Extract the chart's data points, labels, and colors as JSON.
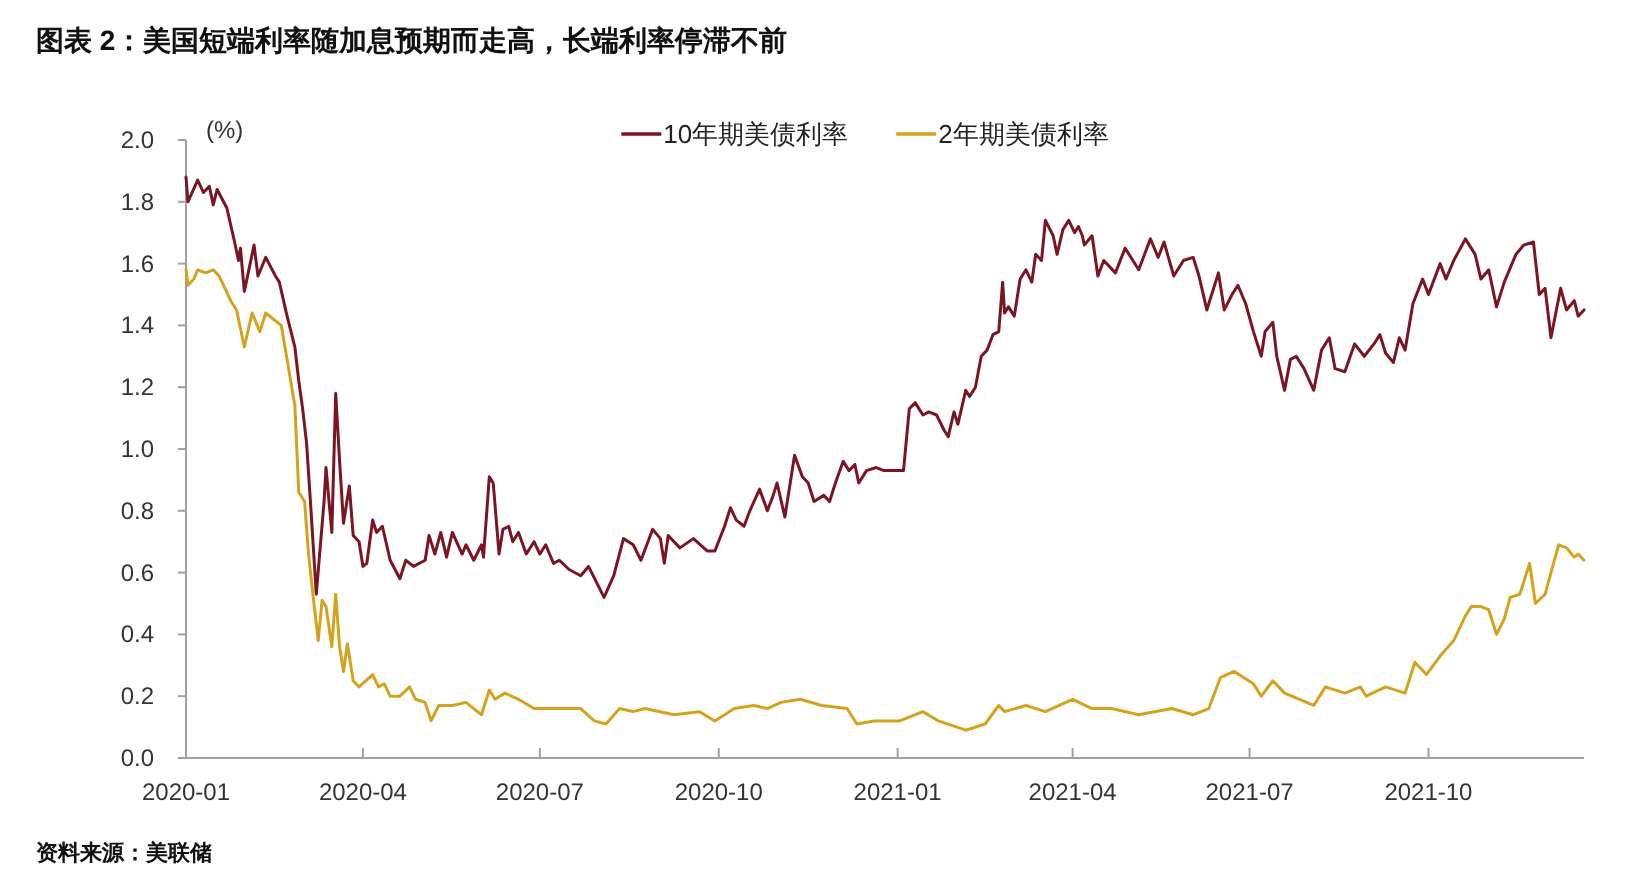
{
  "chart_data": {
    "type": "line",
    "title": "图表 2：美国短端利率随加息预期而走高，长端利率停滞不前",
    "ylabel": "(%)",
    "annotations": [
      "资料来源：美联储"
    ],
    "legend": "top",
    "xlim": [
      "2020-01-01",
      "2021-12-20"
    ],
    "xticks": [
      "2020-01",
      "2020-04",
      "2020-07",
      "2020-10",
      "2021-01",
      "2021-04",
      "2021-07",
      "2021-10"
    ],
    "ylim": [
      0,
      2
    ],
    "yticks": [
      {
        "value": 0,
        "label": "0.0"
      },
      0.2,
      0.4,
      0.6,
      0.8,
      {
        "value": 1,
        "label": "1.0"
      },
      1.2,
      1.4,
      1.6,
      1.8,
      {
        "value": 2,
        "label": "2.0"
      }
    ],
    "series": [
      {
        "name": "10年期美债利率",
        "color": "#7b1423",
        "x": [
          "2020-01-01",
          "2020-01-02",
          "2020-01-07",
          "2020-01-10",
          "2020-01-13",
          "2020-01-15",
          "2020-01-17",
          "2020-01-22",
          "2020-01-26",
          "2020-01-28",
          "2020-01-29",
          "2020-01-31",
          "2020-02-05",
          "2020-02-07",
          "2020-02-11",
          "2020-02-16",
          "2020-02-18",
          "2020-02-22",
          "2020-02-26",
          "2020-02-28",
          "2020-03-01",
          "2020-03-03",
          "2020-03-05",
          "2020-03-08",
          "2020-03-12",
          "2020-03-13",
          "2020-03-16",
          "2020-03-18",
          "2020-03-20",
          "2020-03-22",
          "2020-03-25",
          "2020-03-27",
          "2020-03-30",
          "2020-04-01",
          "2020-04-03",
          "2020-04-06",
          "2020-04-08",
          "2020-04-11",
          "2020-04-15",
          "2020-04-20",
          "2020-04-23",
          "2020-04-27",
          "2020-05-03",
          "2020-05-05",
          "2020-05-08",
          "2020-05-11",
          "2020-05-14",
          "2020-05-17",
          "2020-05-22",
          "2020-05-24",
          "2020-05-28",
          "2020-06-01",
          "2020-06-02",
          "2020-06-05",
          "2020-06-07",
          "2020-06-10",
          "2020-06-12",
          "2020-06-15",
          "2020-06-17",
          "2020-06-20",
          "2020-06-24",
          "2020-06-28",
          "2020-07-01",
          "2020-07-04",
          "2020-07-08",
          "2020-07-11",
          "2020-07-16",
          "2020-07-22",
          "2020-07-26",
          "2020-07-30",
          "2020-08-03",
          "2020-08-08",
          "2020-08-13",
          "2020-08-18",
          "2020-08-22",
          "2020-08-28",
          "2020-09-01",
          "2020-09-03",
          "2020-09-05",
          "2020-09-11",
          "2020-09-18",
          "2020-09-25",
          "2020-09-29",
          "2020-10-04",
          "2020-10-07",
          "2020-10-10",
          "2020-10-14",
          "2020-10-17",
          "2020-10-22",
          "2020-10-26",
          "2020-10-29",
          "2020-10-31",
          "2020-11-04",
          "2020-11-06",
          "2020-11-09",
          "2020-11-13",
          "2020-11-16",
          "2020-11-19",
          "2020-11-24",
          "2020-11-27",
          "2020-11-30",
          "2020-12-04",
          "2020-12-07",
          "2020-12-10",
          "2020-12-12",
          "2020-12-16",
          "2020-12-21",
          "2020-12-25",
          "2020-12-30",
          "2021-01-04",
          "2021-01-07",
          "2021-01-10",
          "2021-01-14",
          "2021-01-17",
          "2021-01-21",
          "2021-01-25",
          "2021-01-27",
          "2021-01-30",
          "2021-02-01",
          "2021-02-05",
          "2021-02-07",
          "2021-02-10",
          "2021-02-13",
          "2021-02-16",
          "2021-02-19",
          "2021-02-22",
          "2021-02-24",
          "2021-02-25",
          "2021-02-27",
          "2021-03-02",
          "2021-03-05",
          "2021-03-08",
          "2021-03-11",
          "2021-03-13",
          "2021-03-16",
          "2021-03-18",
          "2021-03-22",
          "2021-03-24",
          "2021-03-27",
          "2021-03-30",
          "2021-04-02",
          "2021-04-04",
          "2021-04-06",
          "2021-04-07",
          "2021-04-11",
          "2021-04-14",
          "2021-04-17",
          "2021-04-23",
          "2021-04-28",
          "2021-05-05",
          "2021-05-11",
          "2021-05-15",
          "2021-05-18",
          "2021-05-23",
          "2021-05-28",
          "2021-06-02",
          "2021-06-05",
          "2021-06-09",
          "2021-06-15",
          "2021-06-18",
          "2021-06-22",
          "2021-06-25",
          "2021-06-29",
          "2021-07-03",
          "2021-07-07",
          "2021-07-09",
          "2021-07-13",
          "2021-07-15",
          "2021-07-19",
          "2021-07-22",
          "2021-07-25",
          "2021-07-29",
          "2021-08-03",
          "2021-08-07",
          "2021-08-11",
          "2021-08-14",
          "2021-08-19",
          "2021-08-24",
          "2021-08-29",
          "2021-09-03",
          "2021-09-06",
          "2021-09-09",
          "2021-09-13",
          "2021-09-16",
          "2021-09-19",
          "2021-09-23",
          "2021-09-28",
          "2021-10-01",
          "2021-10-07",
          "2021-10-10",
          "2021-10-14",
          "2021-10-20",
          "2021-10-25",
          "2021-10-28",
          "2021-11-01",
          "2021-11-05",
          "2021-11-09",
          "2021-11-15",
          "2021-11-19",
          "2021-11-24",
          "2021-11-27",
          "2021-11-30",
          "2021-12-03",
          "2021-12-08",
          "2021-12-11",
          "2021-12-15",
          "2021-12-17",
          "2021-12-20"
        ],
        "values": [
          1.88,
          1.8,
          1.87,
          1.83,
          1.85,
          1.79,
          1.84,
          1.78,
          1.67,
          1.61,
          1.65,
          1.51,
          1.66,
          1.56,
          1.62,
          1.56,
          1.54,
          1.43,
          1.33,
          1.22,
          1.13,
          1.02,
          0.83,
          0.53,
          0.83,
          0.94,
          0.73,
          1.18,
          0.96,
          0.76,
          0.88,
          0.72,
          0.7,
          0.62,
          0.63,
          0.77,
          0.73,
          0.75,
          0.64,
          0.58,
          0.64,
          0.62,
          0.64,
          0.72,
          0.66,
          0.73,
          0.65,
          0.73,
          0.66,
          0.69,
          0.64,
          0.69,
          0.65,
          0.91,
          0.89,
          0.66,
          0.74,
          0.75,
          0.7,
          0.73,
          0.66,
          0.7,
          0.66,
          0.69,
          0.63,
          0.64,
          0.61,
          0.59,
          0.62,
          0.57,
          0.52,
          0.59,
          0.71,
          0.69,
          0.64,
          0.74,
          0.71,
          0.63,
          0.72,
          0.68,
          0.71,
          0.67,
          0.67,
          0.75,
          0.81,
          0.77,
          0.75,
          0.8,
          0.87,
          0.8,
          0.85,
          0.89,
          0.78,
          0.86,
          0.98,
          0.91,
          0.89,
          0.83,
          0.85,
          0.83,
          0.89,
          0.96,
          0.93,
          0.95,
          0.89,
          0.93,
          0.94,
          0.93,
          0.93,
          0.93,
          1.13,
          1.15,
          1.11,
          1.12,
          1.11,
          1.06,
          1.04,
          1.12,
          1.08,
          1.19,
          1.17,
          1.2,
          1.3,
          1.32,
          1.37,
          1.38,
          1.54,
          1.44,
          1.46,
          1.43,
          1.55,
          1.58,
          1.54,
          1.63,
          1.61,
          1.74,
          1.69,
          1.63,
          1.71,
          1.74,
          1.7,
          1.72,
          1.69,
          1.66,
          1.69,
          1.56,
          1.61,
          1.57,
          1.65,
          1.58,
          1.68,
          1.62,
          1.67,
          1.56,
          1.61,
          1.62,
          1.56,
          1.45,
          1.57,
          1.45,
          1.5,
          1.53,
          1.47,
          1.38,
          1.3,
          1.38,
          1.41,
          1.3,
          1.19,
          1.29,
          1.3,
          1.26,
          1.19,
          1.32,
          1.36,
          1.26,
          1.25,
          1.34,
          1.3,
          1.34,
          1.37,
          1.31,
          1.28,
          1.36,
          1.32,
          1.47,
          1.55,
          1.5,
          1.6,
          1.55,
          1.61,
          1.68,
          1.63,
          1.55,
          1.58,
          1.46,
          1.54,
          1.63,
          1.66,
          1.67,
          1.5,
          1.52,
          1.36,
          1.52,
          1.45,
          1.48,
          1.43,
          1.45
        ]
      },
      {
        "name": "2年期美债利率",
        "color": "#d4a21c",
        "x": [
          "2020-01-01",
          "2020-01-02",
          "2020-01-05",
          "2020-01-07",
          "2020-01-11",
          "2020-01-15",
          "2020-01-18",
          "2020-01-24",
          "2020-01-27",
          "2020-01-31",
          "2020-02-04",
          "2020-02-08",
          "2020-02-11",
          "2020-02-15",
          "2020-02-19",
          "2020-02-22",
          "2020-02-26",
          "2020-02-28",
          "2020-03-02",
          "2020-03-04",
          "2020-03-07",
          "2020-03-09",
          "2020-03-11",
          "2020-03-13",
          "2020-03-16",
          "2020-03-18",
          "2020-03-20",
          "2020-03-22",
          "2020-03-24",
          "2020-03-27",
          "2020-03-30",
          "2020-04-06",
          "2020-04-09",
          "2020-04-12",
          "2020-04-15",
          "2020-04-20",
          "2020-04-25",
          "2020-04-28",
          "2020-05-03",
          "2020-05-06",
          "2020-05-10",
          "2020-05-17",
          "2020-05-24",
          "2020-06-01",
          "2020-06-05",
          "2020-06-08",
          "2020-06-13",
          "2020-06-20",
          "2020-06-28",
          "2020-07-08",
          "2020-07-22",
          "2020-07-29",
          "2020-08-04",
          "2020-08-11",
          "2020-08-18",
          "2020-08-24",
          "2020-09-08",
          "2020-09-21",
          "2020-09-29",
          "2020-10-09",
          "2020-10-19",
          "2020-10-26",
          "2020-11-02",
          "2020-11-12",
          "2020-11-23",
          "2020-12-06",
          "2020-12-11",
          "2020-12-20",
          "2021-01-02",
          "2021-01-14",
          "2021-01-22",
          "2021-02-05",
          "2021-02-15",
          "2021-02-22",
          "2021-02-25",
          "2021-03-08",
          "2021-03-18",
          "2021-04-01",
          "2021-04-11",
          "2021-04-21",
          "2021-05-05",
          "2021-05-22",
          "2021-06-02",
          "2021-06-10",
          "2021-06-16",
          "2021-06-23",
          "2021-07-03",
          "2021-07-07",
          "2021-07-13",
          "2021-07-19",
          "2021-08-03",
          "2021-08-09",
          "2021-08-19",
          "2021-08-27",
          "2021-08-30",
          "2021-09-09",
          "2021-09-19",
          "2021-09-24",
          "2021-09-30",
          "2021-10-07",
          "2021-10-14",
          "2021-10-20",
          "2021-10-23",
          "2021-10-28",
          "2021-11-01",
          "2021-11-05",
          "2021-11-09",
          "2021-11-12",
          "2021-11-17",
          "2021-11-22",
          "2021-11-25",
          "2021-11-30",
          "2021-12-03",
          "2021-12-07",
          "2021-12-11",
          "2021-12-15",
          "2021-12-17",
          "2021-12-20"
        ],
        "values": [
          1.58,
          1.53,
          1.55,
          1.58,
          1.57,
          1.58,
          1.56,
          1.48,
          1.45,
          1.33,
          1.44,
          1.38,
          1.44,
          1.42,
          1.4,
          1.29,
          1.14,
          0.86,
          0.83,
          0.66,
          0.49,
          0.38,
          0.51,
          0.49,
          0.36,
          0.53,
          0.36,
          0.28,
          0.37,
          0.25,
          0.23,
          0.27,
          0.23,
          0.24,
          0.2,
          0.2,
          0.23,
          0.19,
          0.18,
          0.12,
          0.17,
          0.17,
          0.18,
          0.14,
          0.22,
          0.19,
          0.21,
          0.19,
          0.16,
          0.16,
          0.16,
          0.12,
          0.11,
          0.16,
          0.15,
          0.16,
          0.14,
          0.15,
          0.12,
          0.16,
          0.17,
          0.16,
          0.18,
          0.19,
          0.17,
          0.16,
          0.11,
          0.12,
          0.12,
          0.15,
          0.12,
          0.09,
          0.11,
          0.17,
          0.15,
          0.17,
          0.15,
          0.19,
          0.16,
          0.16,
          0.14,
          0.16,
          0.14,
          0.16,
          0.26,
          0.28,
          0.24,
          0.2,
          0.25,
          0.21,
          0.17,
          0.23,
          0.21,
          0.23,
          0.2,
          0.23,
          0.21,
          0.31,
          0.27,
          0.33,
          0.38,
          0.46,
          0.49,
          0.49,
          0.48,
          0.4,
          0.45,
          0.52,
          0.53,
          0.63,
          0.5,
          0.53,
          0.6,
          0.69,
          0.68,
          0.65,
          0.66,
          0.64
        ]
      }
    ]
  }
}
